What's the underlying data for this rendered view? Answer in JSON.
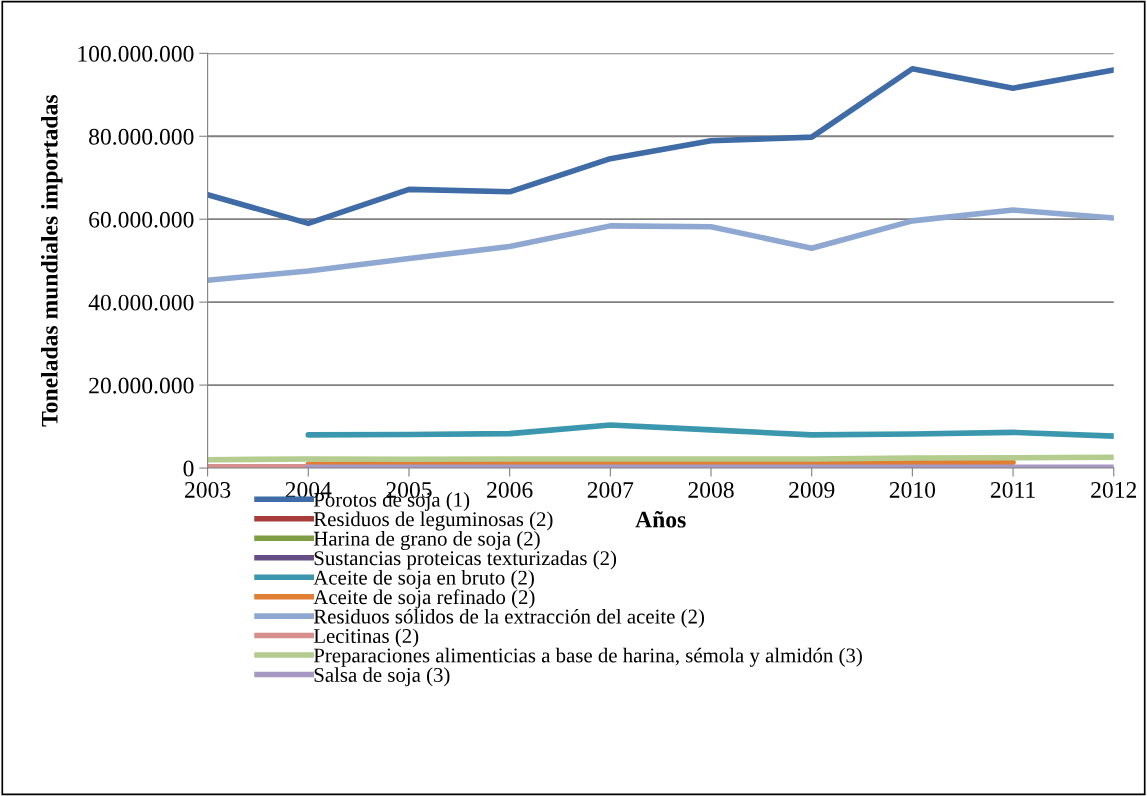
{
  "chart_data": {
    "type": "line",
    "xlabel": "Años",
    "ylabel": "Toneladas mundiales importadas",
    "x": [
      2003,
      2004,
      2005,
      2006,
      2007,
      2008,
      2009,
      2010,
      2011,
      2012
    ],
    "xlim": [
      2003,
      2012
    ],
    "xticks": [
      2003,
      2004,
      2005,
      2006,
      2007,
      2008,
      2009,
      2010,
      2011,
      2012
    ],
    "ylim": [
      0,
      100000000
    ],
    "yticks": [
      0,
      {
        "value": 20000000,
        "label": "20.000.000"
      },
      {
        "value": 40000000,
        "label": "40.000.000"
      },
      {
        "value": 60000000,
        "label": "60.000.000"
      },
      {
        "value": 80000000,
        "label": "80.000.000"
      },
      {
        "value": 100000000,
        "label": "100.000.000"
      }
    ],
    "grid": "y",
    "legend": "bottom",
    "marker": "none",
    "line_style": "solid",
    "series": [
      {
        "name": "Porotos de soja (1)",
        "color": "#3f6ca6",
        "values": [
          65900000,
          59000000,
          67200000,
          66600000,
          74600000,
          78900000,
          79800000,
          96300000,
          91600000,
          96000000
        ]
      },
      {
        "name": "Residuos de leguminosas (2)",
        "color": "#a83c3a",
        "values": [
          null,
          null,
          null,
          null,
          null,
          null,
          null,
          null,
          null,
          null
        ]
      },
      {
        "name": "Harina de grano de soja (2)",
        "color": "#7f9d42",
        "values": [
          null,
          null,
          null,
          null,
          null,
          null,
          null,
          null,
          null,
          null
        ]
      },
      {
        "name": "Sustancias proteicas texturizadas (2)",
        "color": "#674d86",
        "values": [
          null,
          null,
          null,
          null,
          null,
          null,
          null,
          null,
          null,
          null
        ]
      },
      {
        "name": "Aceite de soja en bruto (2)",
        "color": "#3a97ae",
        "values": [
          null,
          8000000,
          8100000,
          8300000,
          10400000,
          9200000,
          8000000,
          8200000,
          8600000,
          7700000
        ]
      },
      {
        "name": "Aceite de soja refinado (2)",
        "color": "#e07f33",
        "values": [
          null,
          900000,
          1000000,
          1000000,
          1100000,
          1100000,
          1100000,
          1300000,
          1400000,
          null
        ]
      },
      {
        "name": "Residuos sólidos de la extracción del aceite (2)",
        "color": "#8fa8d2",
        "values": [
          45300000,
          47500000,
          50500000,
          53400000,
          58400000,
          58200000,
          53000000,
          59600000,
          62200000,
          60300000
        ]
      },
      {
        "name": "Lecitinas (2)",
        "color": "#d68f8d",
        "values": [
          300000,
          300000,
          null,
          null,
          null,
          null,
          null,
          null,
          null,
          null
        ]
      },
      {
        "name": "Preparaciones alimenticias a base de harina, sémola y almidón (3)",
        "color": "#b4cc8e",
        "values": [
          2000000,
          2200000,
          2100000,
          2200000,
          2200000,
          2200000,
          2200000,
          2400000,
          2500000,
          2600000
        ]
      },
      {
        "name": "Salsa de soja (3)",
        "color": "#a899c4",
        "values": [
          null,
          200000,
          200000,
          200000,
          200000,
          200000,
          200000,
          200000,
          200000,
          200000
        ]
      }
    ]
  }
}
